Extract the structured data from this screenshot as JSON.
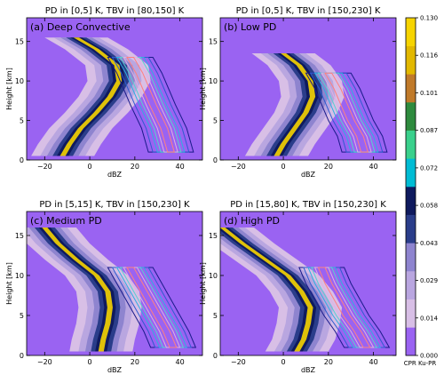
{
  "colorbar": {
    "ticks": [
      "0.000",
      "0.014",
      "0.029",
      "0.043",
      "0.058",
      "0.072",
      "0.087",
      "0.101",
      "0.116",
      "0.130"
    ],
    "colors": [
      "#9a63f2",
      "#d8bfe6",
      "#b9a6e0",
      "#8e84cf",
      "#2a3d8a",
      "#0f1a5e",
      "#00bcd4",
      "#3ad08c",
      "#2e8b3e",
      "#c07a2a",
      "#e2b800",
      "#f6d400"
    ],
    "label": "CPR Ku-PR"
  },
  "chart_data": [
    {
      "type": "contour",
      "title": "PD in [0,5] K, TBV in [80,150] K",
      "panel_label": "(a) Deep Convective",
      "xlabel": "dBZ",
      "ylabel": "Height [km]",
      "xlim": [
        -28,
        50
      ],
      "ylim": [
        0,
        18
      ],
      "xticks": [
        -20,
        0,
        20,
        40
      ],
      "yticks": [
        0,
        5,
        10,
        15
      ],
      "cpr_ridge": {
        "height_km": [
          0.5,
          2,
          4,
          6,
          8,
          10,
          12,
          14,
          15.5
        ],
        "dbz": [
          -12,
          -9,
          -4,
          3,
          9,
          13,
          12,
          3,
          -6
        ]
      },
      "pr_peak": {
        "height_km": [
          1,
          4,
          7,
          9,
          11,
          13
        ],
        "dbz": [
          36,
          33,
          28,
          25,
          22,
          18
        ]
      }
    },
    {
      "type": "contour",
      "title": "PD in [0,5] K, TBV in [150,230] K",
      "panel_label": "(b) Low PD",
      "xlabel": "dBZ",
      "ylabel": "Height [km]",
      "xlim": [
        -28,
        50
      ],
      "ylim": [
        0,
        18
      ],
      "xticks": [
        -20,
        0,
        20,
        40
      ],
      "yticks": [
        0,
        5,
        10,
        15
      ],
      "cpr_ridge": {
        "height_km": [
          0.5,
          2,
          4,
          6,
          8,
          10,
          12,
          13.5
        ],
        "dbz": [
          -3,
          0,
          5,
          10,
          13,
          12,
          7,
          0
        ]
      },
      "pr_peak": {
        "height_km": [
          1,
          3,
          5,
          7,
          9,
          11
        ],
        "dbz": [
          36,
          34,
          30,
          27,
          24,
          20
        ]
      }
    },
    {
      "type": "contour",
      "title": "PD in [5,15] K, TBV in [150,230] K",
      "panel_label": "(c) Medium PD",
      "xlabel": "dBZ",
      "ylabel": "Height [km]",
      "xlim": [
        -28,
        50
      ],
      "ylim": [
        0,
        18
      ],
      "xticks": [
        -20,
        0,
        20,
        40
      ],
      "yticks": [
        0,
        5,
        10,
        15
      ],
      "cpr_ridge": {
        "height_km": [
          0.5,
          2,
          4,
          6,
          8,
          10,
          12,
          14,
          16
        ],
        "dbz": [
          5,
          6,
          8,
          9,
          8,
          3,
          -6,
          -14,
          -20
        ]
      },
      "pr_peak": {
        "height_km": [
          1,
          3,
          5,
          7,
          9,
          11
        ],
        "dbz": [
          37,
          34,
          30,
          26,
          22,
          18
        ]
      }
    },
    {
      "type": "contour",
      "title": "PD in [15,80] K, TBV in [150,230] K",
      "panel_label": "(d) High PD",
      "xlabel": "dBZ",
      "ylabel": "Height [km]",
      "xlim": [
        -28,
        50
      ],
      "ylim": [
        0,
        18
      ],
      "xticks": [
        -20,
        0,
        20,
        40
      ],
      "yticks": [
        0,
        5,
        10,
        15
      ],
      "cpr_ridge": {
        "height_km": [
          0.5,
          2,
          4,
          6,
          8,
          10,
          12,
          14,
          16
        ],
        "dbz": [
          6,
          9,
          11,
          12,
          8,
          2,
          -8,
          -18,
          -27
        ]
      },
      "pr_peak": {
        "height_km": [
          1,
          3,
          5,
          7,
          9,
          11
        ],
        "dbz": [
          37,
          33,
          28,
          24,
          20,
          17
        ]
      }
    }
  ]
}
